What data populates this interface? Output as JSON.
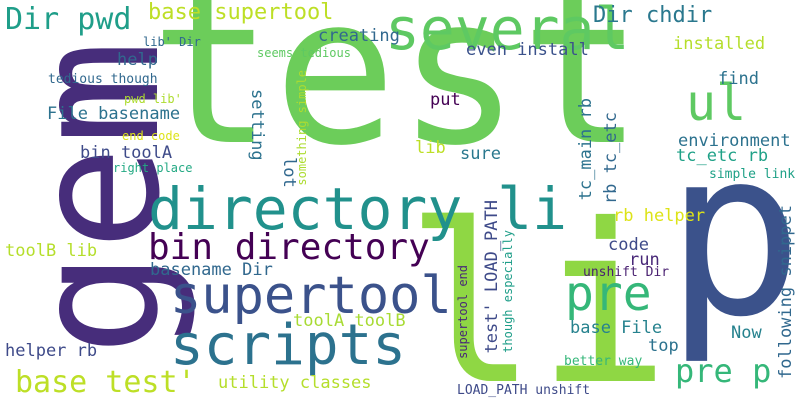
{
  "words": [
    {
      "id": "test",
      "text": "test",
      "color": "#6ccd5a",
      "orientation": "horizontal"
    },
    {
      "id": "gem",
      "text": "gem",
      "color": "#472d7b",
      "orientation": "vertical-up"
    },
    {
      "id": "p",
      "text": "p",
      "color": "#3b528b",
      "orientation": "horizontal"
    },
    {
      "id": "li",
      "text": "li",
      "color": "#8fd744",
      "orientation": "horizontal"
    },
    {
      "id": "several",
      "text": "several",
      "color": "#5ec962",
      "orientation": "horizontal"
    },
    {
      "id": "directory_li",
      "text": "directory li",
      "color": "#21918c",
      "orientation": "horizontal"
    },
    {
      "id": "scripts",
      "text": "scripts",
      "color": "#2c728e",
      "orientation": "horizontal"
    },
    {
      "id": "supertool",
      "text": "supertool",
      "color": "#3b528b",
      "orientation": "horizontal"
    },
    {
      "id": "ul",
      "text": "ul",
      "color": "#5ec962",
      "orientation": "horizontal"
    },
    {
      "id": "pre",
      "text": "pre",
      "color": "#35b779",
      "orientation": "horizontal"
    },
    {
      "id": "bin_directory",
      "text": "bin directory",
      "color": "#440154",
      "orientation": "horizontal"
    },
    {
      "id": "dir_pwd",
      "text": "Dir pwd",
      "color": "#1f9e89",
      "orientation": "horizontal"
    },
    {
      "id": "base_test",
      "text": "base test'",
      "color": "#bddf26",
      "orientation": "horizontal"
    },
    {
      "id": "pre_p",
      "text": "pre p",
      "color": "#35b779",
      "orientation": "horizontal"
    },
    {
      "id": "base_supertool",
      "text": "base supertool",
      "color": "#bddf26",
      "orientation": "horizontal"
    },
    {
      "id": "dir_chdir",
      "text": "Dir chdir",
      "color": "#2a788e",
      "orientation": "horizontal"
    },
    {
      "id": "helper_rb",
      "text": "helper rb",
      "color": "#3e4a89",
      "orientation": "horizontal"
    },
    {
      "id": "utility_classes",
      "text": "utility classes",
      "color": "#b5de2b",
      "orientation": "horizontal"
    },
    {
      "id": "basename_dir",
      "text": "basename Dir",
      "color": "#31688e",
      "orientation": "horizontal"
    },
    {
      "id": "toola_toolb",
      "text": "toolA toolB",
      "color": "#a8db34",
      "orientation": "horizontal"
    },
    {
      "id": "file_basename",
      "text": "File basename",
      "color": "#2c728e",
      "orientation": "horizontal"
    },
    {
      "id": "creating",
      "text": "creating",
      "color": "#31688e",
      "orientation": "horizontal"
    },
    {
      "id": "even_install",
      "text": "even install",
      "color": "#3b528b",
      "orientation": "horizontal"
    },
    {
      "id": "installed",
      "text": "installed",
      "color": "#b5de2b",
      "orientation": "horizontal"
    },
    {
      "id": "find",
      "text": "find",
      "color": "#2c728e",
      "orientation": "horizontal"
    },
    {
      "id": "environment",
      "text": "environment",
      "color": "#2c728e",
      "orientation": "horizontal"
    },
    {
      "id": "tc_etc_rb",
      "text": "tc_etc rb",
      "color": "#1fa187",
      "orientation": "horizontal"
    },
    {
      "id": "simple_link",
      "text": "simple link",
      "color": "#1fa187",
      "orientation": "horizontal"
    },
    {
      "id": "rb_helper",
      "text": "rb helper",
      "color": "#dde318",
      "orientation": "horizontal"
    },
    {
      "id": "code",
      "text": "code",
      "color": "#3e4a89",
      "orientation": "horizontal"
    },
    {
      "id": "run",
      "text": "run",
      "color": "#482878",
      "orientation": "horizontal"
    },
    {
      "id": "unshift_dir",
      "text": "unshift Dir",
      "color": "#481f70",
      "orientation": "horizontal"
    },
    {
      "id": "base_file",
      "text": "base File",
      "color": "#26828e",
      "orientation": "horizontal"
    },
    {
      "id": "now",
      "text": "Now",
      "color": "#26828e",
      "orientation": "horizontal"
    },
    {
      "id": "top",
      "text": "top",
      "color": "#2c728e",
      "orientation": "horizontal"
    },
    {
      "id": "better_way",
      "text": "better way",
      "color": "#35b779",
      "orientation": "horizontal"
    },
    {
      "id": "load_path_unshift",
      "text": "LOAD_PATH unshift",
      "color": "#3e4a89",
      "orientation": "horizontal"
    },
    {
      "id": "put",
      "text": "put",
      "color": "#440154",
      "orientation": "horizontal"
    },
    {
      "id": "lib",
      "text": "lib",
      "color": "#bddf26",
      "orientation": "horizontal"
    },
    {
      "id": "sure",
      "text": "sure",
      "color": "#2a788e",
      "orientation": "horizontal"
    },
    {
      "id": "help",
      "text": "help",
      "color": "#31688e",
      "orientation": "horizontal"
    },
    {
      "id": "lib_dir",
      "text": "lib' Dir",
      "color": "#31688e",
      "orientation": "horizontal"
    },
    {
      "id": "tedious_though",
      "text": "tedious though",
      "color": "#31688e",
      "orientation": "horizontal"
    },
    {
      "id": "pwd_lib",
      "text": "pwd lib'",
      "color": "#addc30",
      "orientation": "horizontal"
    },
    {
      "id": "end_code",
      "text": "end code",
      "color": "#dde318",
      "orientation": "horizontal"
    },
    {
      "id": "bin_toola",
      "text": "bin toolA",
      "color": "#3e4a89",
      "orientation": "horizontal"
    },
    {
      "id": "right_place",
      "text": "right place",
      "color": "#23a983",
      "orientation": "horizontal"
    },
    {
      "id": "seems_tedious",
      "text": "seems tedious",
      "color": "#5ec962",
      "orientation": "horizontal"
    },
    {
      "id": "toolb_lib",
      "text": "toolB lib",
      "color": "#b5de2b",
      "orientation": "horizontal"
    },
    {
      "id": "setting",
      "text": "setting",
      "color": "#2c728e",
      "orientation": "vertical-down"
    },
    {
      "id": "lot",
      "text": "lot",
      "color": "#31688e",
      "orientation": "vertical-down"
    },
    {
      "id": "something_simple",
      "text": "something simple",
      "color": "#addc30",
      "orientation": "vertical-up"
    },
    {
      "id": "test_load_path",
      "text": "test' LOAD_PATH",
      "color": "#3e4a89",
      "orientation": "vertical-up"
    },
    {
      "id": "supertool_end",
      "text": "supertool end",
      "color": "#482878",
      "orientation": "vertical-up"
    },
    {
      "id": "though_especially",
      "text": "though especially",
      "color": "#1f9e89",
      "orientation": "vertical-up"
    },
    {
      "id": "tc_main_rb",
      "text": "tc_main rb",
      "color": "#2c728e",
      "orientation": "vertical-up"
    },
    {
      "id": "rb_tc_etc",
      "text": "rb tc_etc",
      "color": "#31688e",
      "orientation": "vertical-up"
    },
    {
      "id": "following_snippet",
      "text": "following snippet",
      "color": "#31688e",
      "orientation": "vertical-up"
    }
  ]
}
